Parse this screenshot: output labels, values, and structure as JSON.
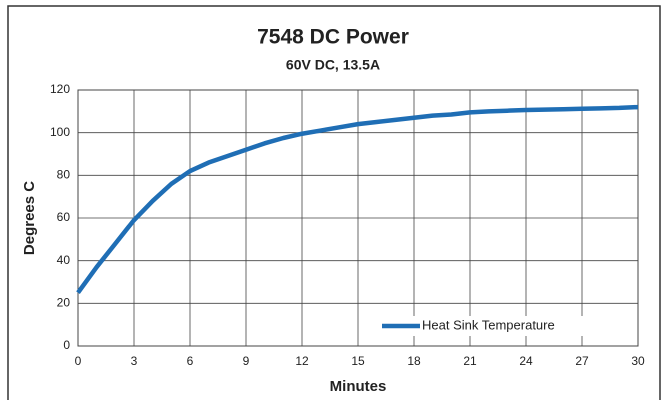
{
  "chart_data": {
    "type": "line",
    "title": "7548 DC Power",
    "subtitle": "60V DC, 13.5A",
    "x_label": "Minutes",
    "y_label": "Degrees C",
    "x": [
      0,
      1,
      2,
      3,
      4,
      5,
      6,
      7,
      8,
      9,
      10,
      11,
      12,
      13,
      14,
      15,
      16,
      17,
      18,
      19,
      20,
      21,
      22,
      23,
      24,
      25,
      26,
      27,
      28,
      29,
      30
    ],
    "series": [
      {
        "name": "Heat Sink Temperature",
        "color": "#1f6eb5",
        "values": [
          25,
          37,
          48,
          59,
          68,
          76,
          82,
          86,
          89,
          92,
          95,
          97.5,
          99.5,
          101,
          102.5,
          104,
          105,
          106,
          107,
          108,
          108.5,
          109.5,
          110,
          110.3,
          110.6,
          110.8,
          111,
          111.2,
          111.4,
          111.6,
          112
        ]
      }
    ],
    "xlim": [
      0,
      30
    ],
    "xticks": [
      0,
      3,
      6,
      9,
      12,
      15,
      18,
      21,
      24,
      27,
      30
    ],
    "ylim": [
      0,
      120
    ],
    "yticks": [
      0,
      20,
      40,
      60,
      80,
      100,
      120
    ],
    "grid": true,
    "legend": "lower right"
  }
}
